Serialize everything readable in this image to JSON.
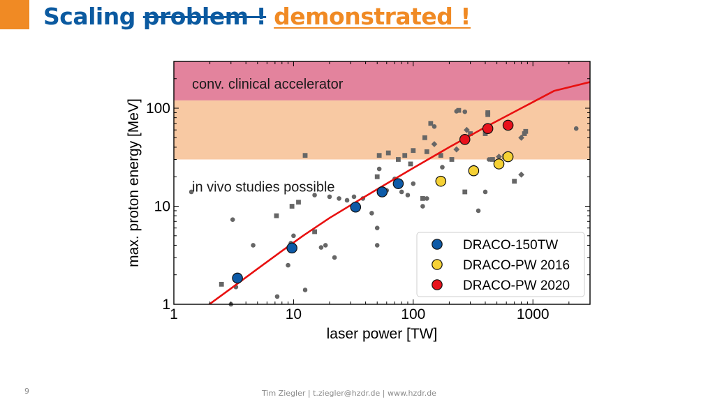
{
  "slide": {
    "title_part1": "Scaling ",
    "title_struck": "problem !",
    "title_accent": "demonstrated !",
    "page_number": "9",
    "footer": "Tim Ziegler | t.ziegler@hzdr.de | www.hzdr.de"
  },
  "colors": {
    "title_blue": "#0b5aa0",
    "accent_orange": "#f08a24",
    "band_clinical": "#e3839d",
    "band_invivo": "#f8c9a3",
    "fit_line": "#e81010",
    "literature_points": "#666666",
    "draco_150tw": "#0d5aa7",
    "draco_pw_2016": "#f5d135",
    "draco_pw_2020": "#e8121c"
  },
  "chart_data": {
    "type": "scatter",
    "xlabel": "laser power [TW]",
    "ylabel": "max. proton energy [MeV]",
    "x_scale": "log",
    "y_scale": "log",
    "xlim": [
      1,
      3000
    ],
    "ylim": [
      1,
      300
    ],
    "x_ticks": [
      1,
      10,
      100,
      1000
    ],
    "x_tick_labels": [
      "1",
      "10",
      "100",
      "1000"
    ],
    "y_ticks": [
      1,
      10,
      100
    ],
    "y_tick_labels": [
      "1",
      "10",
      "100"
    ],
    "grid": false,
    "legend_position": "bottom-right",
    "bands": [
      {
        "label": "conv. clinical accelerator",
        "y_from": 120,
        "y_to": 300,
        "color": "#e3839d"
      },
      {
        "label": "in vivo studies possible",
        "y_from": 30,
        "y_to": 120,
        "color": "#f8c9a3"
      }
    ],
    "fit_line": {
      "color": "#e81010",
      "x": [
        1.8,
        3,
        5,
        8,
        12,
        20,
        35,
        60,
        100,
        200,
        400,
        800,
        1500,
        3000
      ],
      "y": [
        0.92,
        1.45,
        2.3,
        3.5,
        5.0,
        7.6,
        11.5,
        17.0,
        24.5,
        40,
        64,
        100,
        150,
        185
      ]
    },
    "literature_data": {
      "circles": [
        [
          1.4,
          14
        ],
        [
          3.1,
          7.3
        ],
        [
          3.3,
          1.5
        ],
        [
          3,
          1
        ],
        [
          4.6,
          4
        ],
        [
          7.3,
          1.2
        ],
        [
          9,
          2.5
        ],
        [
          9.5,
          4.2
        ],
        [
          10,
          5
        ],
        [
          12.5,
          1.4
        ],
        [
          15,
          13
        ],
        [
          17,
          3.8
        ],
        [
          18.5,
          4
        ],
        [
          20,
          12.5
        ],
        [
          22,
          3
        ],
        [
          24,
          12
        ],
        [
          28,
          11.5
        ],
        [
          32,
          12.5
        ],
        [
          38,
          12
        ],
        [
          45,
          8.5
        ],
        [
          50,
          4
        ],
        [
          50,
          6
        ],
        [
          52,
          24
        ],
        [
          60,
          14.5
        ],
        [
          70,
          19
        ],
        [
          80,
          14
        ],
        [
          90,
          13
        ],
        [
          100,
          17
        ],
        [
          120,
          10
        ],
        [
          130,
          12
        ],
        [
          150,
          65
        ],
        [
          175,
          25
        ],
        [
          230,
          93
        ],
        [
          270,
          92
        ],
        [
          320,
          25
        ],
        [
          350,
          9
        ],
        [
          400,
          14
        ],
        [
          430,
          30
        ],
        [
          2300,
          62
        ]
      ],
      "squares": [
        [
          2.5,
          1.6
        ],
        [
          7.2,
          8
        ],
        [
          9.7,
          10
        ],
        [
          11,
          11
        ],
        [
          12.5,
          33
        ],
        [
          15,
          5.5
        ],
        [
          50,
          20
        ],
        [
          52,
          33
        ],
        [
          62,
          35
        ],
        [
          75,
          30
        ],
        [
          85,
          33
        ],
        [
          95,
          27
        ],
        [
          100,
          37
        ],
        [
          120,
          12
        ],
        [
          125,
          50
        ],
        [
          130,
          36
        ],
        [
          140,
          70
        ],
        [
          170,
          33
        ],
        [
          210,
          30
        ],
        [
          240,
          95
        ],
        [
          270,
          14
        ],
        [
          300,
          55
        ],
        [
          400,
          55
        ],
        [
          420,
          86
        ],
        [
          420,
          90
        ],
        [
          460,
          30
        ],
        [
          580,
          32
        ],
        [
          700,
          18
        ],
        [
          850,
          55
        ],
        [
          870,
          58
        ]
      ],
      "diamonds": [
        [
          150,
          43
        ],
        [
          230,
          38
        ],
        [
          280,
          50
        ],
        [
          280,
          60
        ],
        [
          520,
          32
        ],
        [
          800,
          21
        ],
        [
          800,
          50
        ]
      ]
    },
    "series": [
      {
        "name": "DRACO-150TW",
        "color": "#0d5aa7",
        "points": [
          [
            3.4,
            1.85
          ],
          [
            9.7,
            3.75
          ],
          [
            33,
            9.8
          ],
          [
            55,
            14
          ],
          [
            75,
            17
          ]
        ]
      },
      {
        "name": "DRACO-PW 2016",
        "color": "#f5d135",
        "points": [
          [
            170,
            18
          ],
          [
            320,
            23
          ],
          [
            520,
            27
          ],
          [
            620,
            32
          ]
        ]
      },
      {
        "name": "DRACO-PW 2020",
        "color": "#e8121c",
        "points": [
          [
            270,
            48
          ],
          [
            420,
            62
          ],
          [
            620,
            67
          ]
        ]
      }
    ]
  }
}
